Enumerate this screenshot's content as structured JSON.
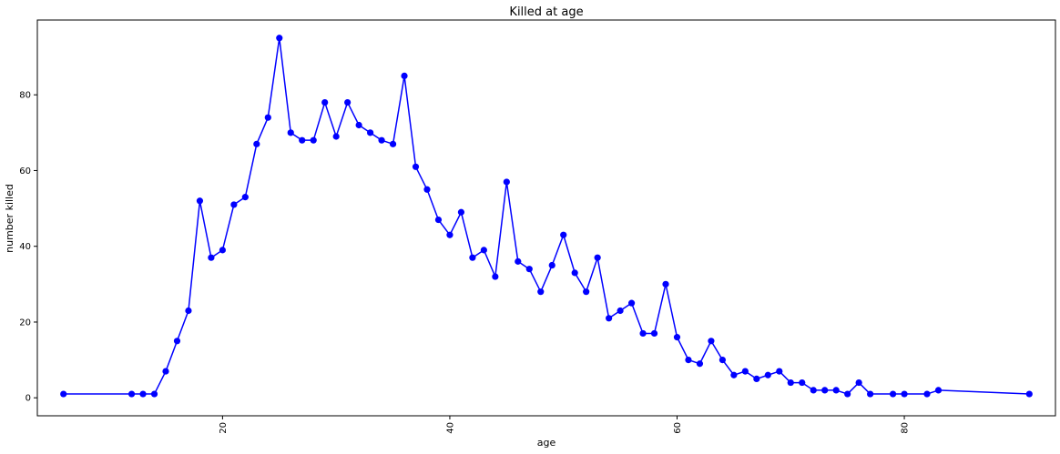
{
  "chart_data": {
    "type": "line",
    "title": "Killed at age",
    "xlabel": "age",
    "ylabel": "number killed",
    "xlim": [
      3.7,
      93.3
    ],
    "ylim": [
      -4.75,
      99.75
    ],
    "xticks": [
      20,
      40,
      60,
      80
    ],
    "yticks": [
      0,
      20,
      40,
      60,
      80
    ],
    "grid": false,
    "series": [
      {
        "color": "#0000ff",
        "marker": "circle",
        "x": [
          6,
          12,
          13,
          14,
          15,
          16,
          17,
          18,
          19,
          20,
          21,
          22,
          23,
          24,
          25,
          26,
          27,
          28,
          29,
          30,
          31,
          32,
          33,
          34,
          35,
          36,
          37,
          38,
          39,
          40,
          41,
          42,
          43,
          44,
          45,
          46,
          47,
          48,
          49,
          50,
          51,
          52,
          53,
          54,
          55,
          56,
          57,
          58,
          59,
          60,
          61,
          62,
          63,
          64,
          65,
          66,
          67,
          68,
          69,
          70,
          71,
          72,
          73,
          74,
          75,
          76,
          77,
          79,
          80,
          82,
          83,
          91
        ],
        "y": [
          1,
          1,
          1,
          1,
          7,
          15,
          23,
          52,
          37,
          39,
          51,
          53,
          67,
          74,
          95,
          70,
          68,
          68,
          78,
          69,
          78,
          72,
          70,
          68,
          67,
          85,
          61,
          55,
          47,
          43,
          49,
          37,
          39,
          32,
          57,
          36,
          34,
          28,
          35,
          43,
          33,
          28,
          37,
          21,
          23,
          25,
          17,
          17,
          30,
          16,
          10,
          9,
          15,
          10,
          6,
          7,
          5,
          6,
          7,
          4,
          4,
          2,
          2,
          2,
          1,
          4,
          1,
          1,
          1,
          1,
          2,
          1
        ]
      }
    ]
  }
}
